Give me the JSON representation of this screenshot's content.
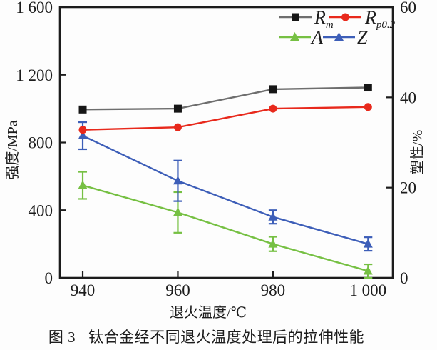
{
  "figure": {
    "caption_prefix": "图 3",
    "caption_text": "钛合金经不同退火温度处理后的拉伸性能"
  },
  "chart_data": {
    "type": "line",
    "title": "",
    "xlabel": "退火温度/℃",
    "ylabel_left": "强度/MPa",
    "ylabel_right": "塑性/%",
    "x": [
      940,
      960,
      980,
      1000
    ],
    "xlim": [
      935.2,
      1005.2
    ],
    "x_ticks": [
      {
        "v": 940,
        "label": "940"
      },
      {
        "v": 960,
        "label": "960"
      },
      {
        "v": 980,
        "label": "980"
      },
      {
        "v": 1000,
        "label": "1 000"
      }
    ],
    "ylim_left": [
      0,
      1600
    ],
    "y_ticks_left": [
      {
        "v": 0,
        "label": "0"
      },
      {
        "v": 400,
        "label": "400"
      },
      {
        "v": 800,
        "label": "800"
      },
      {
        "v": 1200,
        "label": "1 200"
      },
      {
        "v": 1600,
        "label": "1 600"
      }
    ],
    "ylim_right": [
      0,
      60
    ],
    "y_ticks_right": [
      {
        "v": 0,
        "label": "0"
      },
      {
        "v": 20,
        "label": "20"
      },
      {
        "v": 40,
        "label": "40"
      },
      {
        "v": 60,
        "label": "60"
      }
    ],
    "grid": false,
    "legend_position": "top-right-inside",
    "ink_color": "#1c1c1c",
    "series": [
      {
        "name": "Rm",
        "label_main": "R",
        "label_sub": "m",
        "axis": "left",
        "unit": "MPa",
        "marker": "square",
        "marker_color": "#161616",
        "line_color": "#6e6e6e",
        "values": [
          995,
          1000,
          1115,
          1125
        ],
        "errors": [
          0,
          0,
          0,
          0
        ]
      },
      {
        "name": "Rp0.2",
        "label_main": "R",
        "label_sub": "p0.2",
        "axis": "left",
        "unit": "MPa",
        "marker": "circle",
        "marker_color": "#e8291c",
        "line_color": "#e8291c",
        "values": [
          875,
          890,
          1000,
          1010
        ],
        "errors": [
          0,
          0,
          0,
          0
        ]
      },
      {
        "name": "A",
        "label_main": "A",
        "label_sub": "",
        "axis": "right",
        "unit": "%",
        "marker": "triangle",
        "marker_color": "#76c043",
        "line_color": "#76c043",
        "values": [
          20.5,
          14.5,
          7.5,
          1.5
        ],
        "errors": [
          3,
          4.5,
          1.6,
          1.5
        ]
      },
      {
        "name": "Z",
        "label_main": "Z",
        "label_sub": "",
        "axis": "right",
        "unit": "%",
        "marker": "triangle",
        "marker_color": "#3d5eb8",
        "line_color": "#3d5eb8",
        "values": [
          31.5,
          21.5,
          13.5,
          7.5
        ],
        "errors": [
          3,
          4.5,
          1.5,
          1.5
        ]
      }
    ]
  }
}
